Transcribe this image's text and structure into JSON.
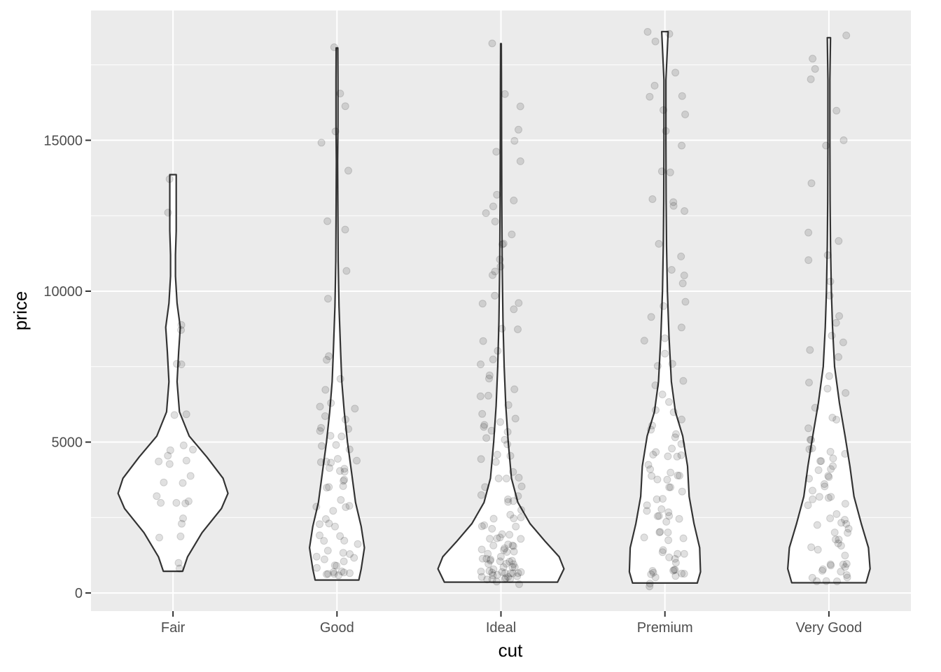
{
  "chart_data": {
    "type": "violin",
    "title": "",
    "xlabel": "cut",
    "ylabel": "price",
    "ylim": [
      -600,
      19300
    ],
    "yticks": [
      0,
      5000,
      10000,
      15000
    ],
    "ytick_labels": [
      "0",
      "5000",
      "10000",
      "15000"
    ],
    "categories": [
      "Fair",
      "Good",
      "Ideal",
      "Premium",
      "Very Good"
    ],
    "grid": true,
    "legend": "none",
    "colors": {
      "panel": "#ebebeb",
      "grid": "#ffffff",
      "violin_fill": "#ffffff",
      "violin_stroke": "#333333",
      "point": "#000000"
    },
    "point_alpha": 0.12,
    "violins": [
      {
        "category": "Fair",
        "min": 720,
        "max": 13860,
        "density": [
          [
            720,
            0.12
          ],
          [
            1200,
            0.18
          ],
          [
            2000,
            0.36
          ],
          [
            2800,
            0.6
          ],
          [
            3300,
            0.68
          ],
          [
            3800,
            0.62
          ],
          [
            4500,
            0.42
          ],
          [
            5200,
            0.2
          ],
          [
            6000,
            0.08
          ],
          [
            7000,
            0.05
          ],
          [
            8000,
            0.07
          ],
          [
            8800,
            0.09
          ],
          [
            9600,
            0.05
          ],
          [
            10500,
            0.03
          ],
          [
            11200,
            0.03
          ],
          [
            12000,
            0.04
          ],
          [
            13000,
            0.04
          ],
          [
            13860,
            0.04
          ]
        ]
      },
      {
        "category": "Good",
        "min": 430,
        "max": 18060,
        "density": [
          [
            430,
            0.27
          ],
          [
            800,
            0.3
          ],
          [
            1500,
            0.34
          ],
          [
            2200,
            0.3
          ],
          [
            3000,
            0.23
          ],
          [
            4000,
            0.18
          ],
          [
            5000,
            0.13
          ],
          [
            6000,
            0.09
          ],
          [
            7000,
            0.06
          ],
          [
            8000,
            0.045
          ],
          [
            9500,
            0.025
          ],
          [
            11000,
            0.015
          ],
          [
            13000,
            0.01
          ],
          [
            14300,
            0.008
          ],
          [
            15500,
            0.012
          ],
          [
            17000,
            0.012
          ],
          [
            18060,
            0.01
          ]
        ]
      },
      {
        "category": "Ideal",
        "min": 360,
        "max": 18200,
        "density": [
          [
            360,
            0.7
          ],
          [
            800,
            0.78
          ],
          [
            1200,
            0.72
          ],
          [
            1700,
            0.55
          ],
          [
            2300,
            0.36
          ],
          [
            3000,
            0.21
          ],
          [
            3800,
            0.13
          ],
          [
            5000,
            0.09
          ],
          [
            6200,
            0.06
          ],
          [
            7500,
            0.04
          ],
          [
            9000,
            0.025
          ],
          [
            11000,
            0.015
          ],
          [
            13000,
            0.01
          ],
          [
            15000,
            0.008
          ],
          [
            17000,
            0.006
          ],
          [
            18200,
            0.004
          ]
        ]
      },
      {
        "category": "Premium",
        "min": 330,
        "max": 18600,
        "density": [
          [
            330,
            0.4
          ],
          [
            700,
            0.44
          ],
          [
            1500,
            0.43
          ],
          [
            2300,
            0.36
          ],
          [
            3200,
            0.3
          ],
          [
            4200,
            0.28
          ],
          [
            5200,
            0.22
          ],
          [
            6000,
            0.13
          ],
          [
            7000,
            0.08
          ],
          [
            8500,
            0.05
          ],
          [
            10000,
            0.03
          ],
          [
            11500,
            0.02
          ],
          [
            13000,
            0.015
          ],
          [
            15000,
            0.012
          ],
          [
            17000,
            0.012
          ],
          [
            18600,
            0.04
          ]
        ]
      },
      {
        "category": "Very Good",
        "min": 340,
        "max": 18400,
        "density": [
          [
            340,
            0.46
          ],
          [
            800,
            0.51
          ],
          [
            1500,
            0.49
          ],
          [
            2300,
            0.4
          ],
          [
            3200,
            0.31
          ],
          [
            4200,
            0.26
          ],
          [
            5200,
            0.2
          ],
          [
            6300,
            0.13
          ],
          [
            7500,
            0.07
          ],
          [
            8800,
            0.045
          ],
          [
            10000,
            0.03
          ],
          [
            11500,
            0.02
          ],
          [
            13000,
            0.015
          ],
          [
            15000,
            0.012
          ],
          [
            17000,
            0.012
          ],
          [
            18400,
            0.02
          ]
        ]
      }
    ],
    "points": [
      {
        "category": "Fair",
        "values": [
          750,
          1160,
          1930,
          1960,
          2400,
          2420,
          2870,
          2900,
          3080,
          3150,
          3200,
          3600,
          3620,
          4000,
          4250,
          4280,
          4300,
          4550,
          4740,
          4800,
          4850,
          5860,
          6010,
          7450,
          7460,
          8680,
          8800,
          12570,
          13860
        ]
      },
      {
        "category": "Good",
        "values": [
          480,
          500,
          520,
          560,
          600,
          650,
          700,
          780,
          850,
          920,
          980,
          1050,
          1120,
          1200,
          1250,
          1300,
          1350,
          1500,
          1620,
          1750,
          1850,
          1950,
          2050,
          2200,
          2300,
          2420,
          2550,
          2700,
          2800,
          2950,
          3050,
          3200,
          3350,
          3500,
          3600,
          3750,
          3850,
          3900,
          3950,
          4100,
          4200,
          4280,
          4300,
          4350,
          4450,
          4550,
          4700,
          4900,
          5000,
          5050,
          5150,
          5250,
          5350,
          5500,
          5700,
          5850,
          6050,
          6300,
          6450,
          6650,
          7250,
          7800,
          7950,
          9760,
          10680,
          12100,
          12200,
          13840,
          14920,
          15250,
          16170,
          16500,
          18060
        ]
      },
      {
        "category": "Ideal",
        "values": [
          400,
          430,
          460,
          480,
          500,
          520,
          540,
          560,
          580,
          600,
          620,
          640,
          660,
          680,
          700,
          720,
          740,
          760,
          780,
          800,
          820,
          840,
          860,
          880,
          900,
          920,
          940,
          960,
          980,
          1000,
          1020,
          1050,
          1080,
          1100,
          1150,
          1200,
          1250,
          1300,
          1350,
          1400,
          1450,
          1500,
          1550,
          1600,
          1650,
          1700,
          1750,
          1800,
          1850,
          1900,
          1950,
          2000,
          2050,
          2100,
          2200,
          2300,
          2400,
          2500,
          2600,
          2700,
          2800,
          2900,
          3000,
          3100,
          3200,
          3300,
          3400,
          3500,
          3650,
          3800,
          3950,
          4100,
          4250,
          4400,
          4550,
          4700,
          4850,
          5000,
          5100,
          5200,
          5300,
          5400,
          5500,
          5650,
          5800,
          6000,
          6200,
          6400,
          6600,
          6800,
          7100,
          7300,
          7500,
          7700,
          8000,
          8200,
          8600,
          8900,
          9300,
          9500,
          9700,
          10000,
          10400,
          10700,
          10800,
          11100,
          11400,
          11700,
          12000,
          12300,
          12600,
          12800,
          13000,
          13300,
          14300,
          14600,
          15000,
          15500,
          16000,
          16600,
          18200
        ]
      },
      {
        "category": "Premium",
        "values": [
          330,
          380,
          420,
          460,
          500,
          550,
          600,
          650,
          700,
          760,
          820,
          880,
          940,
          1000,
          1100,
          1200,
          1300,
          1400,
          1500,
          1600,
          1700,
          1800,
          1900,
          2000,
          2100,
          2200,
          2300,
          2400,
          2500,
          2600,
          2700,
          2800,
          2900,
          3000,
          3100,
          3200,
          3300,
          3400,
          3500,
          3600,
          3700,
          3800,
          3900,
          4000,
          4100,
          4200,
          4300,
          4400,
          4500,
          4600,
          4700,
          4800,
          4900,
          5000,
          5100,
          5200,
          5300,
          5500,
          5700,
          5900,
          6100,
          6300,
          6550,
          6800,
          7100,
          7400,
          7700,
          8000,
          8300,
          8600,
          8900,
          9200,
          9500,
          9800,
          10100,
          10400,
          10800,
          11200,
          11500,
          12700,
          12900,
          13000,
          13100,
          13900,
          14100,
          14900,
          15200,
          15900,
          16000,
          16500,
          16600,
          16900,
          17100,
          18300,
          18500,
          18600
        ]
      },
      {
        "category": "Very Good",
        "values": [
          350,
          400,
          450,
          500,
          550,
          600,
          650,
          700,
          760,
          820,
          880,
          940,
          1000,
          1100,
          1200,
          1300,
          1400,
          1500,
          1600,
          1700,
          1800,
          1900,
          2000,
          2100,
          2200,
          2300,
          2400,
          2500,
          2600,
          2700,
          2800,
          2900,
          3000,
          3100,
          3200,
          3300,
          3400,
          3500,
          3600,
          3700,
          3800,
          3900,
          4000,
          4100,
          4200,
          4300,
          4400,
          4500,
          4600,
          4700,
          4800,
          4900,
          5000,
          5200,
          5400,
          5600,
          5900,
          6200,
          6500,
          6800,
          7000,
          7300,
          7700,
          8000,
          8200,
          8600,
          9000,
          9300,
          9700,
          10200,
          10900,
          11100,
          11500,
          11800,
          13600,
          14900,
          15000,
          15900,
          17100,
          17300,
          17800,
          18400
        ]
      }
    ]
  }
}
